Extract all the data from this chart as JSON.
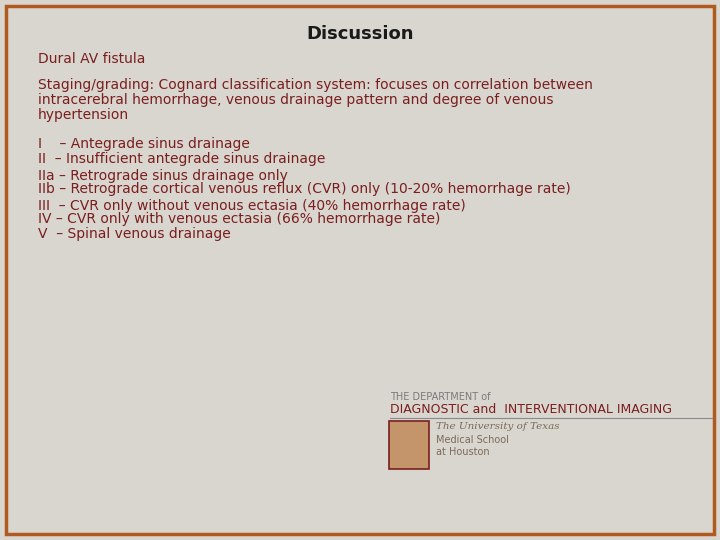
{
  "title": "Discussion",
  "title_fontsize": 13,
  "background_color": "#d9d6d0",
  "border_color": "#b05a20",
  "text_color": "#7a1e1e",
  "title_color": "#1a1a1a",
  "subtitle": "Dural AV fistula",
  "subtitle_fontsize": 10,
  "paragraph_line1": "Staging/grading: Cognard classification system: focuses on correlation between",
  "paragraph_line2": "intracerebral hemorrhage, venous drainage pattern and degree of venous",
  "paragraph_line3": "hypertension",
  "paragraph_fontsize": 10,
  "list_items": [
    "I    – Antegrade sinus drainage",
    "II  – Insufficient antegrade sinus drainage",
    "IIa – Retrograde sinus drainage only",
    "IIb – Retrograde cortical venous reflux (CVR) only (10-20% hemorrhage rate)",
    "III  – CVR only without venous ectasia (40% hemorrhage rate)",
    "IV – CVR only with venous ectasia (66% hemorrhage rate)",
    "V  – Spinal venous drainage"
  ],
  "list_fontsize": 10,
  "footer_dept": "THE DEPARTMENT of",
  "footer_diag": "DIAGNOSTIC and  INTERVENTIONAL IMAGING",
  "footer_univ": "The University of Texas",
  "footer_med": "Medical School",
  "footer_houston": "at Houston",
  "footer_fontsize_dept": 7,
  "footer_fontsize_diag": 9,
  "footer_fontsize_univ": 7.5,
  "footer_fontsize_med": 7,
  "footer_fontsize_houston": 7
}
